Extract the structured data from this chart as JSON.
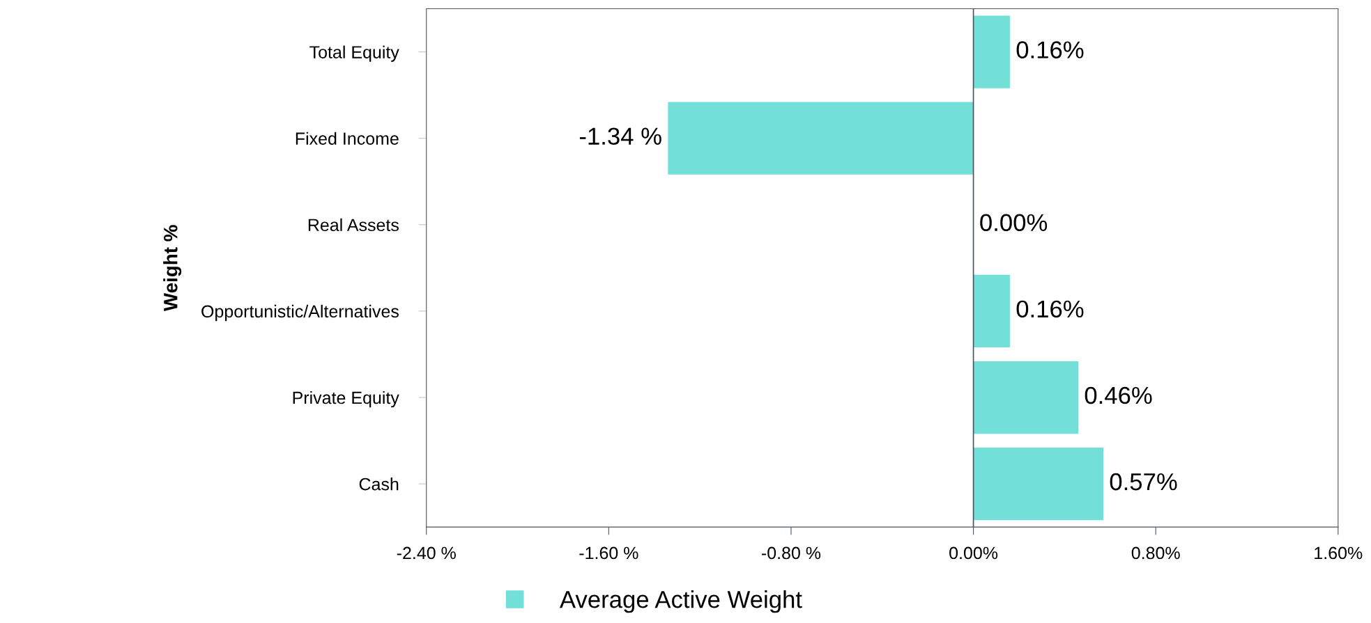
{
  "chart_data": {
    "type": "bar",
    "orientation": "horizontal",
    "ylabel": "Weight %",
    "categories": [
      "Total Equity",
      "Fixed Income",
      "Real Assets",
      "Opportunistic/Alternatives",
      "Private Equity",
      "Cash"
    ],
    "series": [
      {
        "name": "Average Active Weight",
        "color": "#72e0d8",
        "values": [
          0.16,
          -1.34,
          0.0,
          0.16,
          0.46,
          0.57
        ],
        "value_labels": [
          "0.16%",
          "-1.34 %",
          "0.00%",
          "0.16%",
          "0.46%",
          "0.57%"
        ]
      }
    ],
    "xlim": [
      -2.4,
      1.6
    ],
    "xticks": [
      {
        "value": -2.4,
        "label": "-2.40 %"
      },
      {
        "value": -1.6,
        "label": "-1.60 %"
      },
      {
        "value": -0.8,
        "label": "-0.80 %"
      },
      {
        "value": 0,
        "label": "0.00%"
      },
      {
        "value": 0.8,
        "label": "0.80%"
      },
      {
        "value": 1.6,
        "label": "1.60%"
      }
    ],
    "ref_lines": [
      {
        "axis": "x",
        "value": 0,
        "color": "#4a5560"
      }
    ],
    "grid": false,
    "legend": "bottom"
  }
}
